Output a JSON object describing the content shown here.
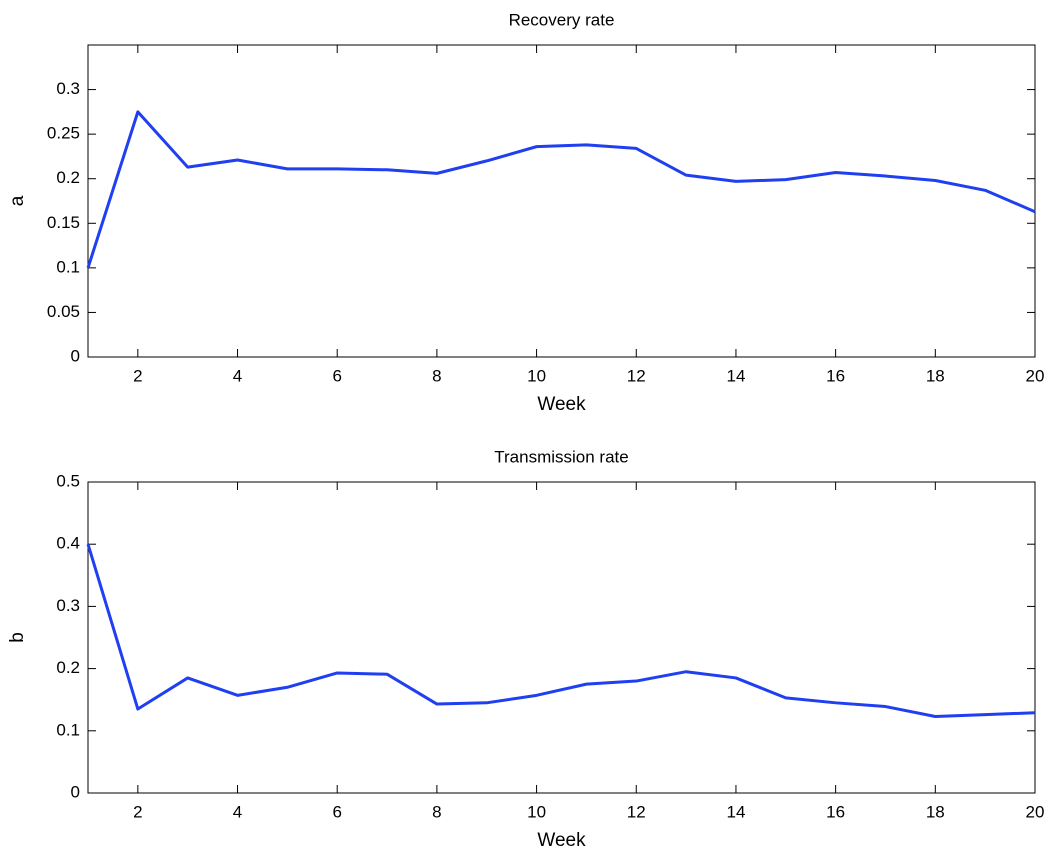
{
  "chart_data": [
    {
      "type": "line",
      "title": "Recovery rate",
      "x_label": "Week",
      "y_label": "a",
      "x": [
        1,
        2,
        3,
        4,
        5,
        6,
        7,
        8,
        9,
        10,
        11,
        12,
        13,
        14,
        15,
        16,
        17,
        18,
        19,
        20
      ],
      "series": [
        {
          "color": "#1f3ff0",
          "values": [
            0.1,
            0.275,
            0.213,
            0.221,
            0.211,
            0.211,
            0.21,
            0.206,
            0.22,
            0.236,
            0.238,
            0.234,
            0.204,
            0.197,
            0.199,
            0.207,
            0.203,
            0.198,
            0.187,
            0.163
          ]
        }
      ],
      "xlim": [
        1,
        20
      ],
      "xticks": [
        2,
        4,
        6,
        8,
        10,
        12,
        14,
        16,
        18,
        20
      ],
      "ylim": [
        0,
        0.35
      ],
      "yticks": [
        0,
        0.05,
        0.1,
        0.15,
        0.2,
        0.25,
        0.3
      ],
      "grid": false
    },
    {
      "type": "line",
      "title": "Transmission rate",
      "x_label": "Week",
      "y_label": "b",
      "x": [
        1,
        2,
        3,
        4,
        5,
        6,
        7,
        8,
        9,
        10,
        11,
        12,
        13,
        14,
        15,
        16,
        17,
        18,
        19,
        20
      ],
      "series": [
        {
          "color": "#1f3ff0",
          "values": [
            0.4,
            0.135,
            0.185,
            0.157,
            0.17,
            0.193,
            0.191,
            0.143,
            0.145,
            0.157,
            0.175,
            0.18,
            0.195,
            0.185,
            0.153,
            0.145,
            0.139,
            0.123,
            0.126,
            0.129
          ]
        }
      ],
      "xlim": [
        1,
        20
      ],
      "xticks": [
        2,
        4,
        6,
        8,
        10,
        12,
        14,
        16,
        18,
        20
      ],
      "ylim": [
        0,
        0.5
      ],
      "yticks": [
        0,
        0.1,
        0.2,
        0.3,
        0.4,
        0.5
      ],
      "grid": false
    }
  ]
}
